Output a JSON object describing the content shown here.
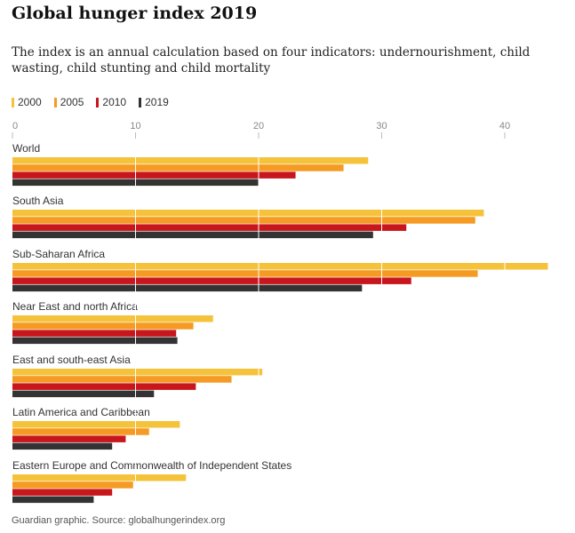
{
  "header": {
    "title": "Global hunger index 2019",
    "subtitle": "The index is an annual calculation based on four indicators: undernourishment, child wasting, child stunting and child mortality"
  },
  "source": "Guardian graphic. Source: globalhungerindex.org",
  "colors": {
    "2000": "#f5c33b",
    "2005": "#f59a23",
    "2010": "#c8161d",
    "2019": "#333333"
  },
  "chart_data": {
    "type": "bar",
    "orientation": "horizontal",
    "categories": [
      "World",
      "South Asia",
      "Sub-Saharan Africa",
      "Near East and north Africa",
      "East and south-east Asia",
      "Latin America and Caribbean",
      "Eastern Europe and Commonwealth of Independent States"
    ],
    "series": [
      {
        "name": "2000",
        "values": [
          28.9,
          38.3,
          43.5,
          16.3,
          20.3,
          13.6,
          14.1
        ]
      },
      {
        "name": "2005",
        "values": [
          26.9,
          37.6,
          37.8,
          14.7,
          17.8,
          11.1,
          9.8
        ]
      },
      {
        "name": "2010",
        "values": [
          23.0,
          32.0,
          32.4,
          13.3,
          14.9,
          9.2,
          8.1
        ]
      },
      {
        "name": "2019",
        "values": [
          20.0,
          29.3,
          28.4,
          13.4,
          11.5,
          8.1,
          6.6
        ]
      }
    ],
    "xlim": [
      0,
      45
    ],
    "xticks": [
      "0",
      "10",
      "20",
      "30",
      "40"
    ],
    "legend_position": "top-left",
    "grid": true
  }
}
